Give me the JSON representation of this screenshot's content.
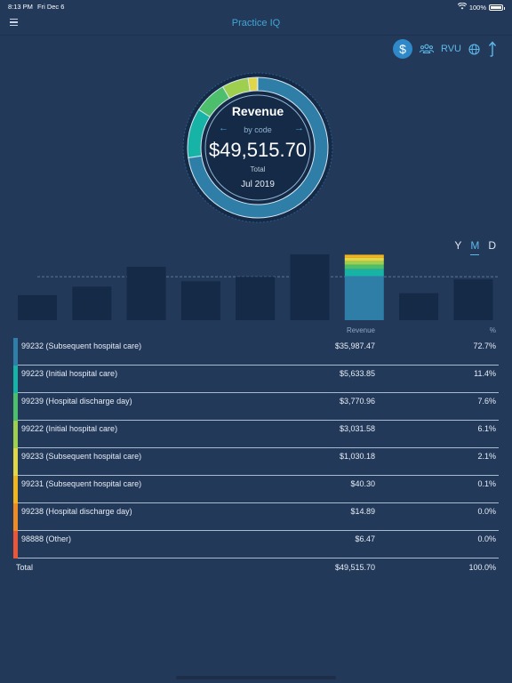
{
  "status_bar": {
    "time": "8:13 PM",
    "date": "Fri Dec 6",
    "battery": "100%"
  },
  "app": {
    "title": "Practice IQ"
  },
  "toolbar": {
    "dollar_label": "$",
    "rvu_label": "RVU"
  },
  "summary": {
    "title": "Revenue",
    "subtitle": "by code",
    "amount": "$49,515.70",
    "label": "Total",
    "period": "Jul 2019"
  },
  "period_toggle": {
    "year": "Y",
    "month": "M",
    "day": "D",
    "selected": "M"
  },
  "colors": {
    "background": "#23395a",
    "accent": "#3fa7d6",
    "bar": "#142a46",
    "selected_bar": "#2f7fb1"
  },
  "chart_data": {
    "type": "bar",
    "values": [
      0.38,
      0.51,
      0.81,
      0.59,
      0.66,
      1.0,
      0.92,
      0.41,
      0.62
    ],
    "selected_index": 6,
    "average_line": 0.66,
    "ylim": [
      0,
      1
    ],
    "selected_stack": [
      0.727,
      0.114,
      0.076,
      0.061,
      0.021,
      0.001
    ]
  },
  "table": {
    "headers": {
      "revenue": "Revenue",
      "percent": "%"
    },
    "rows": [
      {
        "code": "99232 (Subsequent hospital care)",
        "revenue": "$35,987.47",
        "percent": "72.7%",
        "color": "#2e7ea8"
      },
      {
        "code": "99223 (Initial hospital care)",
        "revenue": "$5,633.85",
        "percent": "11.4%",
        "color": "#17b3a6"
      },
      {
        "code": "99239 (Hospital discharge day)",
        "revenue": "$3,770.96",
        "percent": "7.6%",
        "color": "#4cbe6c"
      },
      {
        "code": "99222 (Initial hospital care)",
        "revenue": "$3,031.58",
        "percent": "6.1%",
        "color": "#9fcf4f"
      },
      {
        "code": "99233 (Subsequent hospital care)",
        "revenue": "$1,030.18",
        "percent": "2.1%",
        "color": "#e1d548"
      },
      {
        "code": "99231 (Subsequent hospital care)",
        "revenue": "$40.30",
        "percent": "0.1%",
        "color": "#f0b51c"
      },
      {
        "code": "99238 (Hospital discharge day)",
        "revenue": "$14.89",
        "percent": "0.0%",
        "color": "#ef8b24"
      },
      {
        "code": "98888 (Other)",
        "revenue": "$6.47",
        "percent": "0.0%",
        "color": "#e8573a"
      }
    ],
    "total": {
      "label": "Total",
      "revenue": "$49,515.70",
      "percent": "100.0%"
    }
  }
}
